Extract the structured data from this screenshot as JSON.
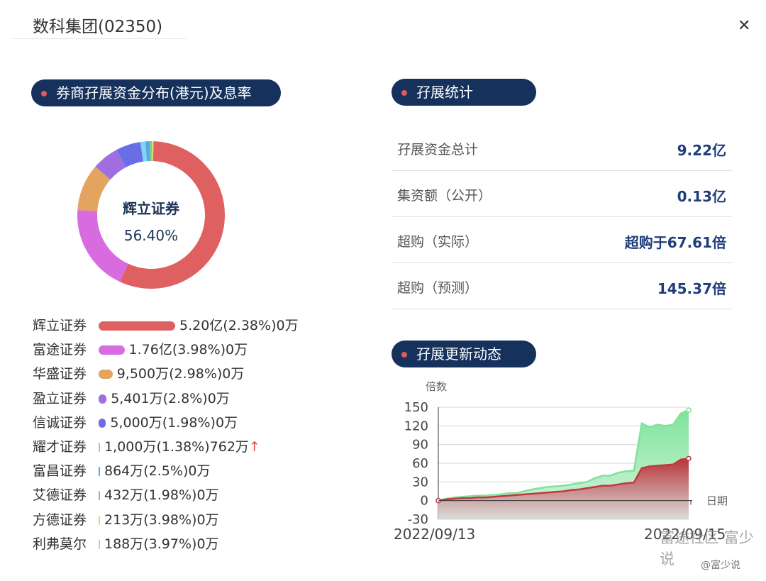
{
  "header": {
    "title": "数科集团(02350)",
    "close_icon": "close-icon"
  },
  "distribution": {
    "section_title": "券商孖展资金分布(港元)及息率",
    "donut_center": {
      "name": "辉立证券",
      "percent": "56.40%"
    },
    "brokers": [
      {
        "name": "辉立证券",
        "value": "5.20亿(2.38%)0万",
        "color": "#df6060",
        "share": 56.4
      },
      {
        "name": "富途证券",
        "value": "1.76亿(3.98%)0万",
        "color": "#d96be0",
        "share": 19.09
      },
      {
        "name": "华盛证券",
        "value": "9,500万(2.98%)0万",
        "color": "#e3a45f",
        "share": 10.3
      },
      {
        "name": "盈立证券",
        "value": "5,401万(2.8%)0万",
        "color": "#a06ee0",
        "share": 5.86
      },
      {
        "name": "信诚证券",
        "value": "5,000万(1.98%)0万",
        "color": "#6a6ee6",
        "share": 5.42
      },
      {
        "name": "耀才证券",
        "value": "1,000万(1.38%)762万",
        "color": "#7fd6f0",
        "share": 1.08,
        "arrow": "↑"
      },
      {
        "name": "富昌证券",
        "value": "864万(2.5%)0万",
        "color": "#5aa7e8",
        "share": 0.94
      },
      {
        "name": "艾德证券",
        "value": "432万(1.98%)0万",
        "color": "#74d27a",
        "share": 0.47
      },
      {
        "name": "方德证券",
        "value": "213万(3.98%)0万",
        "color": "#e7d86a",
        "share": 0.23
      },
      {
        "name": "利弗莫尔",
        "value": "188万(3.97%)0万",
        "color": "#b4e08a",
        "share": 0.2
      }
    ]
  },
  "stats": {
    "section_title": "孖展统计",
    "rows": [
      {
        "label": "孖展资金总计",
        "value": "9.22亿"
      },
      {
        "label": "集资额（公开）",
        "value": "0.13亿"
      },
      {
        "label": "超购（实际）",
        "value": "超购于67.61倍"
      },
      {
        "label": "超购（预测）",
        "value": "145.37倍"
      }
    ]
  },
  "dynamics": {
    "section_title": "孖展更新动态"
  },
  "chart_data": {
    "type": "area",
    "ylabel": "倍数",
    "xlabel": "日期",
    "ylim": [
      -30,
      150
    ],
    "yticks": [
      -30,
      0,
      30,
      60,
      90,
      120,
      150
    ],
    "x_start_label": "2022/09/13",
    "x_end_label": "2022/09/15",
    "grid": true,
    "series": [
      {
        "color": "#7fe39b",
        "values": [
          0,
          3,
          5,
          6,
          7,
          8,
          8,
          9,
          10,
          12,
          12,
          15,
          18,
          20,
          22,
          23,
          24,
          26,
          28,
          30,
          36,
          40,
          40,
          45,
          47,
          48,
          124,
          118,
          122,
          120,
          122,
          140,
          145.37
        ]
      },
      {
        "color": "#c0393f",
        "values": [
          0,
          2,
          3,
          4,
          4,
          5,
          5,
          6,
          7,
          8,
          9,
          10,
          11,
          12,
          13,
          14,
          15,
          17,
          18,
          20,
          22,
          24,
          24,
          26,
          28,
          29,
          52,
          55,
          56,
          57,
          58,
          66,
          67.61
        ]
      }
    ]
  },
  "watermark": {
    "line1": "富途社区 富少说",
    "line2": "@富少说"
  }
}
